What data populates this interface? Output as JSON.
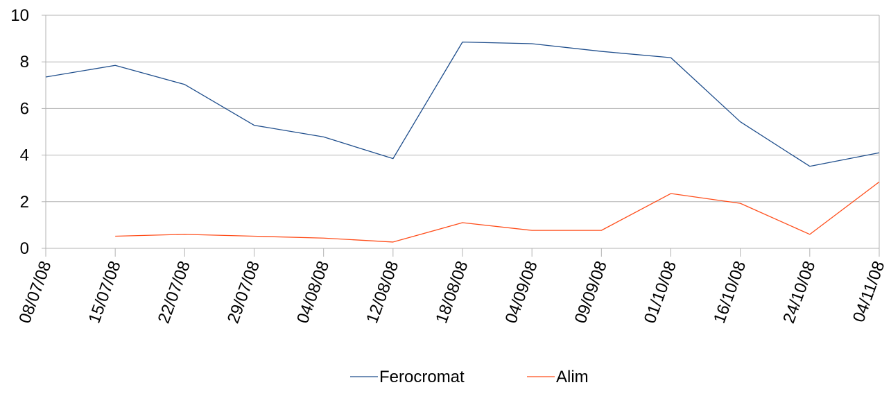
{
  "chart_data": {
    "type": "line",
    "title": "",
    "xlabel": "",
    "ylabel": "",
    "categories": [
      "08/07/08",
      "15/07/08",
      "22/07/08",
      "29/07/08",
      "04/08/08",
      "12/08/08",
      "18/08/08",
      "04/09/08",
      "09/09/08",
      "01/10/08",
      "16/10/08",
      "24/10/08",
      "04/11/08"
    ],
    "ylim": [
      0,
      10
    ],
    "yticks": [
      0,
      2,
      4,
      6,
      8,
      10
    ],
    "grid": true,
    "legend_position": "bottom",
    "series": [
      {
        "name": "Ferocromat",
        "color": "#1f4e8c",
        "values": [
          7.35,
          7.85,
          7.03,
          5.28,
          4.78,
          3.85,
          8.85,
          8.78,
          8.45,
          8.18,
          5.43,
          3.52,
          4.1
        ]
      },
      {
        "name": "Alim",
        "color": "#ff4d1a",
        "values": [
          null,
          0.52,
          0.6,
          0.52,
          0.44,
          0.27,
          1.1,
          0.77,
          0.77,
          2.35,
          1.93,
          0.6,
          2.85
        ]
      }
    ]
  }
}
